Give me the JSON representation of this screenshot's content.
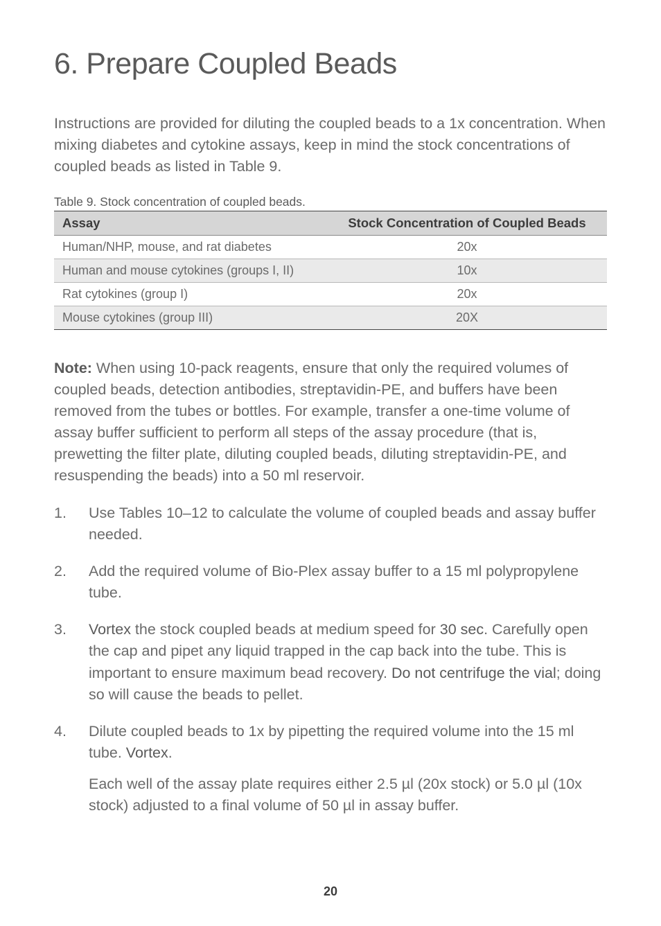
{
  "heading": "6. Prepare Coupled Beads",
  "intro": "Instructions are provided for diluting the coupled beads to a 1x concentration. When mixing diabetes and cytokine assays, keep in mind the stock concentrations of coupled beads as listed in Table 9.",
  "table": {
    "caption": "Table 9. Stock concentration of coupled beads.",
    "columns": [
      "Assay",
      "Stock Concentration of Coupled Beads"
    ],
    "rows": [
      [
        "Human/NHP, mouse, and rat diabetes",
        "20x"
      ],
      [
        "Human and mouse cytokines (groups I, II)",
        "10x"
      ],
      [
        "Rat cytokines (group I)",
        "20x"
      ],
      [
        "Mouse cytokines (group III)",
        "20X"
      ]
    ]
  },
  "note": {
    "label": "Note:",
    "text": " When using 10-pack reagents, ensure that only the required volumes of coupled beads, detection antibodies, streptavidin-PE, and buffers have been removed from the tubes or bottles. For example, transfer a one-time volume of assay buffer sufficient to perform all steps of the assay procedure (that is, prewetting the filter plate, diluting coupled beads, diluting streptavidin-PE, and resuspending the beads) into a 50 ml reservoir."
  },
  "steps": {
    "s1": "Use Tables 10–12 to calculate the volume of coupled beads and assay buffer needed.",
    "s2": "Add the required volume of Bio-Plex assay buffer to a 15 ml polypropylene tube.",
    "s3": {
      "vortex": "Vortex",
      "a": " the stock coupled beads at medium speed for ",
      "thirty": "30 sec",
      "b": ". Carefully open the cap and pipet any liquid trapped in the cap back into the tube. This is important to ensure maximum bead recovery. ",
      "dont": "Do not centrifuge the vial",
      "c": "; doing so will cause the beads to pellet."
    },
    "s4": {
      "a": "Dilute coupled beads to 1x by pipetting the required volume into the 15 ml tube. ",
      "vortex": "Vortex",
      "b": ".",
      "sub": "Each well of the assay plate requires either 2.5 µl (20x stock) or 5.0 µl (10x stock) adjusted to a final volume of 50 µl in assay buffer."
    }
  },
  "page_number": "20"
}
